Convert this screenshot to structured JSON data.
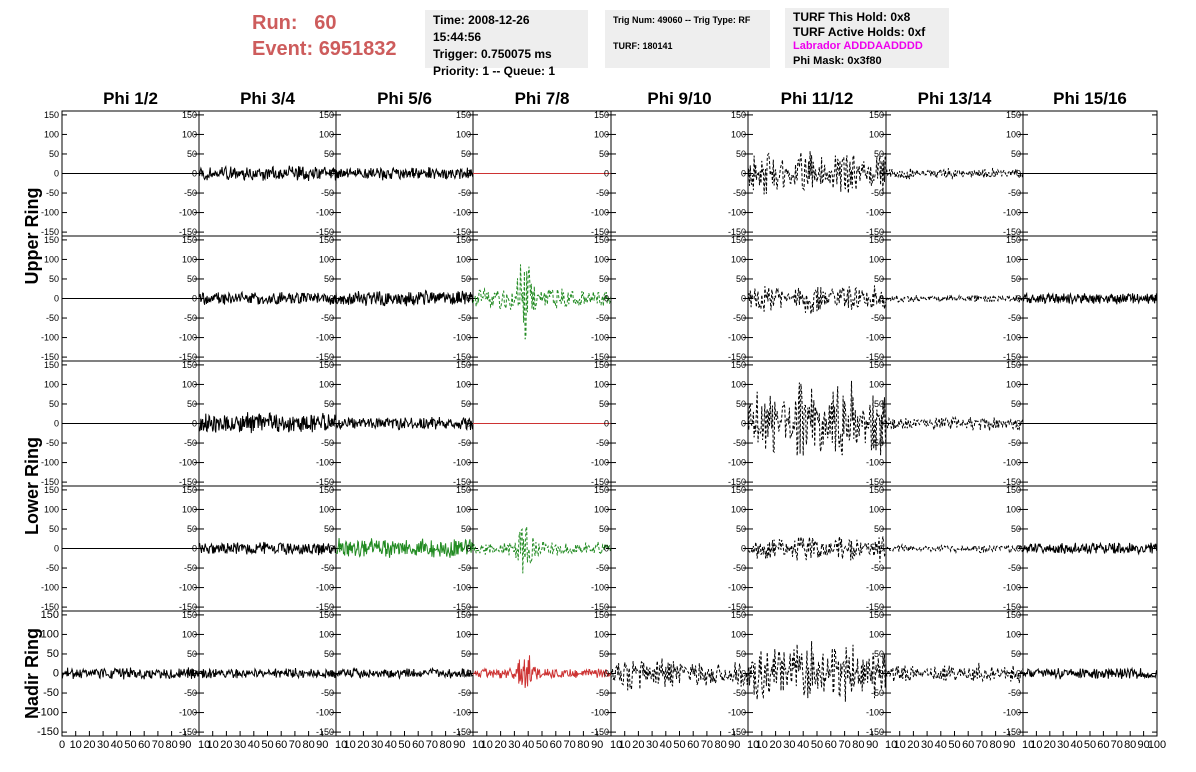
{
  "header": {
    "run_label": "Run:",
    "run_value": "60",
    "event_label": "Event:",
    "event_value": "6951832",
    "time": "Time: 2008-12-26 15:44:56",
    "trigger": "Trigger: 0.750075 ms",
    "priority": "Priority: 1 -- Queue: 1",
    "trig_num": "Trig Num: 49060 -- Trig Type: RF",
    "turf": "TURF: 180141",
    "turf_hold": "TURF This Hold: 0x8",
    "turf_active": "TURF Active Holds: 0xf",
    "labrador": "Labrador ADDDAADDDD",
    "phi_mask": "Phi Mask: 0x3f80"
  },
  "colors": {
    "header_red": "#cd5c5c",
    "labrador_magenta": "#ee00ee",
    "trace_black": "#000000",
    "trace_green": "#228b22",
    "trace_red": "#cd3333",
    "info_bg": "#eeeeee"
  },
  "chart_data": {
    "type": "line",
    "columns": [
      "Phi 1/2",
      "Phi 3/4",
      "Phi 5/6",
      "Phi 7/8",
      "Phi 9/10",
      "Phi 11/12",
      "Phi 13/14",
      "Phi 15/16"
    ],
    "row_labels": [
      {
        "label": "Upper Ring",
        "rows": [
          0,
          1
        ]
      },
      {
        "label": "Lower Ring",
        "rows": [
          2,
          3
        ]
      },
      {
        "label": "Nadir Ring",
        "rows": [
          4
        ]
      }
    ],
    "ylim": [
      -160,
      160
    ],
    "xlim": [
      0,
      100
    ],
    "yticks": [
      -150,
      -100,
      -50,
      0,
      50,
      100,
      150
    ],
    "xticks": [
      0,
      10,
      20,
      30,
      40,
      50,
      60,
      70,
      80,
      90
    ],
    "x_last_tick": 100,
    "traces": [
      [
        {
          "amp": 0,
          "style": "flat",
          "color": "black"
        },
        {
          "amp": 22,
          "style": "solid",
          "color": "black"
        },
        {
          "amp": 18,
          "style": "solid",
          "color": "black"
        },
        {
          "amp": 0,
          "style": "flat",
          "color": "red"
        },
        {
          "amp": 0,
          "style": "blank",
          "color": "black"
        },
        {
          "amp": 65,
          "style": "dashed",
          "color": "black"
        },
        {
          "amp": 18,
          "style": "dashed",
          "color": "black"
        },
        {
          "amp": 0,
          "style": "flat",
          "color": "black"
        }
      ],
      [
        {
          "amp": 0,
          "style": "flat",
          "color": "black"
        },
        {
          "amp": 18,
          "style": "solid",
          "color": "black"
        },
        {
          "amp": 22,
          "style": "solid",
          "color": "black"
        },
        {
          "amp": 130,
          "style": "dashed",
          "color": "green",
          "burst": 38
        },
        {
          "amp": 0,
          "style": "blank",
          "color": "black"
        },
        {
          "amp": 45,
          "style": "dashed",
          "color": "black"
        },
        {
          "amp": 12,
          "style": "dashed",
          "color": "black"
        },
        {
          "amp": 16,
          "style": "solid",
          "color": "black"
        }
      ],
      [
        {
          "amp": 0,
          "style": "flat",
          "color": "black"
        },
        {
          "amp": 30,
          "style": "solid",
          "color": "black"
        },
        {
          "amp": 18,
          "style": "solid",
          "color": "black"
        },
        {
          "amp": 0,
          "style": "flat",
          "color": "red"
        },
        {
          "amp": 0,
          "style": "blank",
          "color": "black"
        },
        {
          "amp": 120,
          "style": "dashed",
          "color": "black"
        },
        {
          "amp": 22,
          "style": "dashed",
          "color": "black"
        },
        {
          "amp": 0,
          "style": "flat",
          "color": "black"
        }
      ],
      [
        {
          "amp": 0,
          "style": "flat",
          "color": "black"
        },
        {
          "amp": 18,
          "style": "solid",
          "color": "black"
        },
        {
          "amp": 28,
          "style": "solid",
          "color": "green"
        },
        {
          "amp": 90,
          "style": "dashed",
          "color": "green",
          "burst": 38
        },
        {
          "amp": 0,
          "style": "blank",
          "color": "black"
        },
        {
          "amp": 40,
          "style": "dashed",
          "color": "black"
        },
        {
          "amp": 12,
          "style": "dashed",
          "color": "black"
        },
        {
          "amp": 16,
          "style": "solid",
          "color": "black"
        }
      ],
      [
        {
          "amp": 16,
          "style": "solid",
          "color": "black"
        },
        {
          "amp": 14,
          "style": "solid",
          "color": "black"
        },
        {
          "amp": 14,
          "style": "solid",
          "color": "black"
        },
        {
          "amp": 60,
          "style": "solid",
          "color": "red",
          "burst": 38
        },
        {
          "amp": 50,
          "style": "dashed",
          "color": "black"
        },
        {
          "amp": 95,
          "style": "dashed",
          "color": "black"
        },
        {
          "amp": 28,
          "style": "dashed",
          "color": "black"
        },
        {
          "amp": 16,
          "style": "solid",
          "color": "black"
        }
      ]
    ]
  }
}
